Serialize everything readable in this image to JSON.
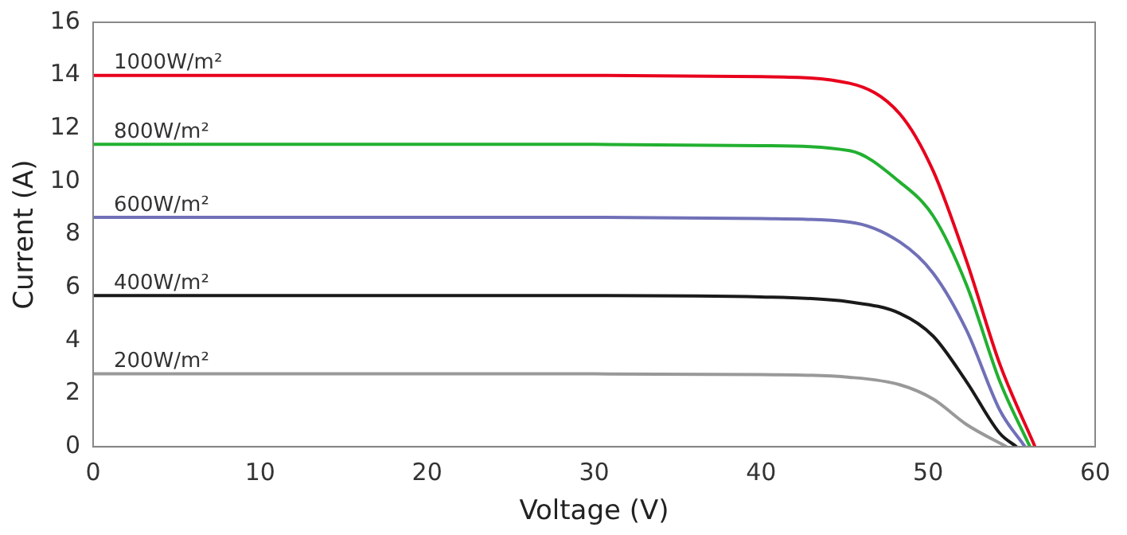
{
  "chart_data": {
    "type": "line",
    "xlabel": "Voltage (V)",
    "ylabel": "Current (A)",
    "xlim": [
      0,
      60
    ],
    "xticks": [
      0,
      10,
      20,
      30,
      40,
      50,
      60
    ],
    "ylim": [
      0,
      16
    ],
    "yticks": [
      0,
      2,
      4,
      6,
      8,
      10,
      12,
      14,
      16
    ],
    "grid": false,
    "legend": false,
    "marker": "none",
    "line_style": "solid",
    "series": [
      {
        "name": "1000W/m²",
        "color": "#e8001c",
        "x": [
          0,
          10,
          20,
          30,
          40,
          45.3,
          48.3,
          50.3,
          52.3,
          54.3,
          56.4
        ],
        "values": [
          14,
          14,
          14,
          14,
          13.95,
          13.7,
          12.55,
          10.4,
          7.0,
          3.1,
          0
        ]
      },
      {
        "name": "800W/m²",
        "color": "#22b030",
        "x": [
          0,
          10,
          20,
          30,
          40,
          45.3,
          48.3,
          50.3,
          52.3,
          54.3,
          56.1
        ],
        "values": [
          11.4,
          11.4,
          11.4,
          11.4,
          11.35,
          11.16,
          9.98,
          8.7,
          6.1,
          2.45,
          0
        ]
      },
      {
        "name": "600W/m²",
        "color": "#7070b8",
        "x": [
          0,
          10,
          20,
          30,
          40,
          45.3,
          48.3,
          50.3,
          52.3,
          54.3,
          55.8
        ],
        "values": [
          8.65,
          8.65,
          8.65,
          8.65,
          8.6,
          8.47,
          7.72,
          6.54,
          4.39,
          1.37,
          0
        ]
      },
      {
        "name": "400W/m²",
        "color": "#1a1a1a",
        "x": [
          0,
          10,
          20,
          30,
          40,
          45.3,
          48.3,
          50.3,
          52.3,
          54.3,
          55.3
        ],
        "values": [
          5.7,
          5.7,
          5.7,
          5.7,
          5.65,
          5.46,
          5.03,
          4.17,
          2.45,
          0.5,
          0
        ]
      },
      {
        "name": "200W/m²",
        "color": "#999999",
        "x": [
          0,
          10,
          20,
          30,
          40,
          45.3,
          48.3,
          50.3,
          52.3,
          54.7
        ],
        "values": [
          2.75,
          2.75,
          2.75,
          2.75,
          2.72,
          2.62,
          2.34,
          1.8,
          0.84,
          0
        ]
      }
    ]
  }
}
